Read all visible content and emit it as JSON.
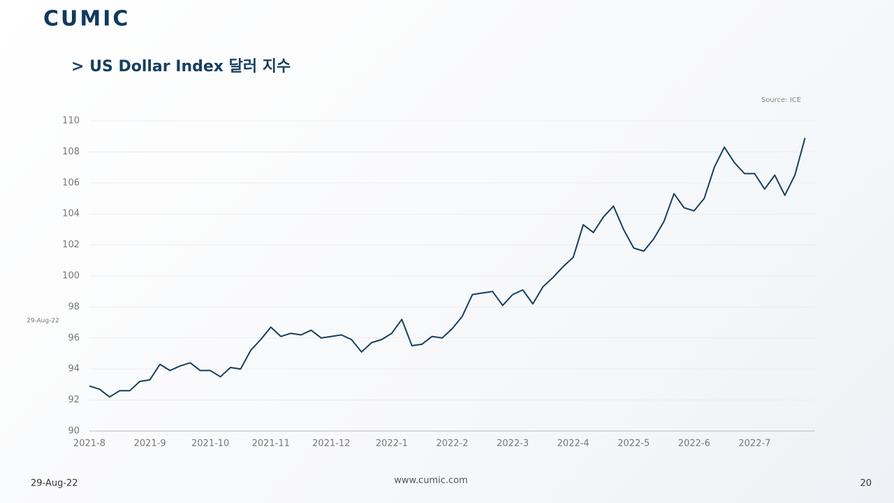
{
  "header": {
    "logo": "CUMIC",
    "title": "> US Dollar Index 달러 지수"
  },
  "chart_data": {
    "type": "line",
    "source": "Source: ICE",
    "side_note": "29-Aug-22",
    "categories": [
      "2021-8",
      null,
      null,
      null,
      null,
      null,
      "2021-9",
      null,
      null,
      null,
      null,
      null,
      "2021-10",
      null,
      null,
      null,
      null,
      null,
      "2021-11",
      null,
      null,
      null,
      null,
      null,
      "2021-12",
      null,
      null,
      null,
      null,
      null,
      "2022-1",
      null,
      null,
      null,
      null,
      null,
      "2022-2",
      null,
      null,
      null,
      null,
      null,
      "2022-3",
      null,
      null,
      null,
      null,
      null,
      "2022-4",
      null,
      null,
      null,
      null,
      null,
      "2022-5",
      null,
      null,
      null,
      null,
      null,
      "2022-6",
      null,
      null,
      null,
      null,
      null,
      "2022-7",
      null,
      null,
      null,
      null,
      null
    ],
    "values": [
      92.9,
      92.7,
      92.2,
      92.6,
      92.6,
      93.2,
      93.3,
      94.3,
      93.9,
      94.2,
      94.4,
      93.9,
      93.9,
      93.5,
      94.1,
      94.0,
      95.2,
      95.9,
      96.7,
      96.1,
      96.3,
      96.2,
      96.5,
      96.0,
      96.1,
      96.2,
      95.9,
      95.1,
      95.7,
      95.9,
      96.3,
      97.2,
      95.5,
      95.6,
      96.1,
      96.0,
      96.6,
      97.4,
      98.8,
      98.9,
      99.0,
      98.1,
      98.8,
      99.1,
      98.2,
      99.3,
      99.9,
      100.6,
      101.2,
      103.3,
      102.8,
      103.8,
      104.5,
      103.0,
      101.8,
      101.6,
      102.4,
      103.5,
      105.3,
      104.4,
      104.2,
      105.0,
      107.0,
      108.3,
      107.3,
      106.6,
      106.6,
      105.6,
      106.5,
      105.2,
      106.5,
      108.9
    ],
    "color": "#163f5f",
    "ylim": [
      90,
      110
    ],
    "yticks": [
      90,
      92,
      94,
      96,
      98,
      100,
      102,
      104,
      106,
      108,
      110
    ],
    "grid": true
  },
  "footer": {
    "date": "29-Aug-22",
    "site": "www.cumic.com",
    "page": "20"
  }
}
